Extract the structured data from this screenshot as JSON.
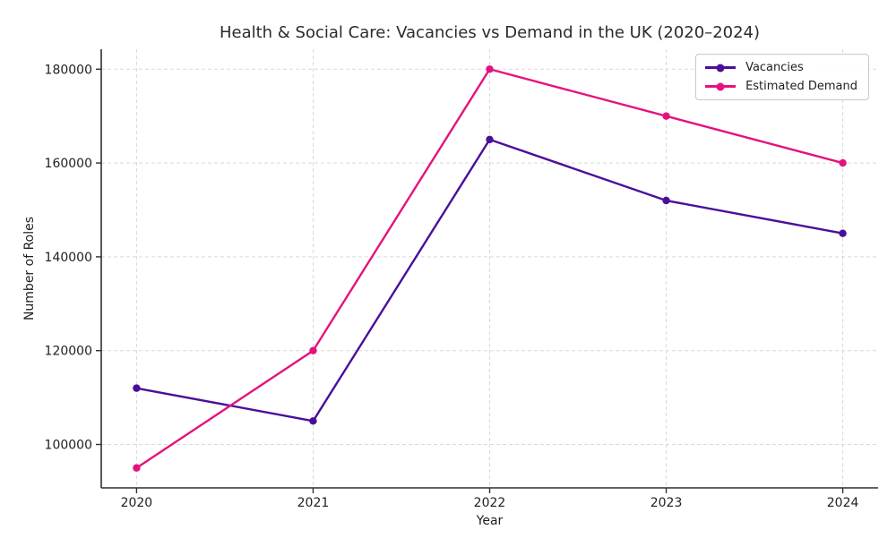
{
  "chart_data": {
    "type": "line",
    "title": "Health & Social Care: Vacancies vs Demand in the UK (2020–2024)",
    "xlabel": "Year",
    "ylabel": "Number of Roles",
    "categories": [
      2020,
      2021,
      2022,
      2023,
      2024
    ],
    "series": [
      {
        "name": "Vacancies",
        "color": "#4B0E9B",
        "values": [
          112000,
          105000,
          165000,
          152000,
          145000
        ]
      },
      {
        "name": "Estimated Demand",
        "color": "#E5127D",
        "values": [
          95000,
          120000,
          180000,
          170000,
          160000
        ]
      }
    ],
    "y_ticks": [
      100000,
      120000,
      140000,
      160000,
      180000
    ],
    "xlim": [
      2019.8,
      2024.2
    ],
    "ylim": [
      90750,
      184250
    ],
    "grid": true,
    "grid_style": "dashed",
    "grid_color": "#d9d9d9",
    "spine_color": "#2f2f2f",
    "legend_position": "upper right",
    "marker": "circle",
    "marker_radius": 4.2,
    "line_width": 2.4
  }
}
